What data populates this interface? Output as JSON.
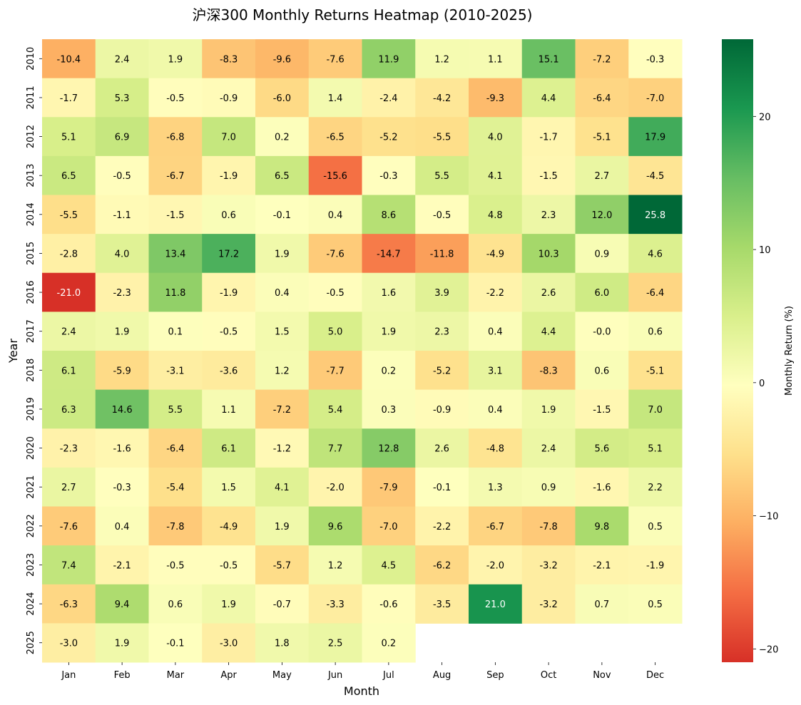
{
  "chart_data": {
    "type": "heatmap",
    "title": "沪深300 Monthly Returns Heatmap (2010-2025)",
    "xlabel": "Month",
    "ylabel": "Year",
    "colorbar_label": "Monthly Return (%)",
    "colormap": [
      "#d73027",
      "#f46d43",
      "#fdae61",
      "#fee08b",
      "#ffffbf",
      "#d9ef8b",
      "#a6d96a",
      "#66bd63",
      "#1a9850",
      "#006837"
    ],
    "vmin": -21.0,
    "vmax": 25.8,
    "colorbar_ticks": [
      20,
      10,
      0,
      -10,
      -20
    ],
    "colorbar_tick_labels": [
      "20",
      "10",
      "0",
      "−10",
      "−20"
    ],
    "months": [
      "Jan",
      "Feb",
      "Mar",
      "Apr",
      "May",
      "Jun",
      "Jul",
      "Aug",
      "Sep",
      "Oct",
      "Nov",
      "Dec"
    ],
    "years": [
      "2010",
      "2011",
      "2012",
      "2013",
      "2014",
      "2015",
      "2016",
      "2017",
      "2018",
      "2019",
      "2020",
      "2021",
      "2022",
      "2023",
      "2024",
      "2025"
    ],
    "values": [
      [
        -10.4,
        2.4,
        1.9,
        -8.3,
        -9.6,
        -7.6,
        11.9,
        1.2,
        1.1,
        15.1,
        -7.2,
        -0.3
      ],
      [
        -1.7,
        5.3,
        -0.5,
        -0.9,
        -6.0,
        1.4,
        -2.4,
        -4.2,
        -9.3,
        4.4,
        -6.4,
        -7.0
      ],
      [
        5.1,
        6.9,
        -6.8,
        7.0,
        0.2,
        -6.5,
        -5.2,
        -5.5,
        4.0,
        -1.7,
        -5.1,
        17.9
      ],
      [
        6.5,
        -0.5,
        -6.7,
        -1.9,
        6.5,
        -15.6,
        -0.3,
        5.5,
        4.1,
        -1.5,
        2.7,
        -4.5
      ],
      [
        -5.5,
        -1.1,
        -1.5,
        0.6,
        -0.1,
        0.4,
        8.6,
        -0.5,
        4.8,
        2.3,
        12.0,
        25.8
      ],
      [
        -2.8,
        4.0,
        13.4,
        17.2,
        1.9,
        -7.6,
        -14.7,
        -11.8,
        -4.9,
        10.3,
        0.9,
        4.6
      ],
      [
        -21.0,
        -2.3,
        11.8,
        -1.9,
        0.4,
        -0.5,
        1.6,
        3.9,
        -2.2,
        2.6,
        6.0,
        -6.4
      ],
      [
        2.4,
        1.9,
        0.1,
        -0.5,
        1.5,
        5.0,
        1.9,
        2.3,
        0.4,
        4.4,
        -0.0,
        0.6
      ],
      [
        6.1,
        -5.9,
        -3.1,
        -3.6,
        1.2,
        -7.7,
        0.2,
        -5.2,
        3.1,
        -8.3,
        0.6,
        -5.1
      ],
      [
        6.3,
        14.6,
        5.5,
        1.1,
        -7.2,
        5.4,
        0.3,
        -0.9,
        0.4,
        1.9,
        -1.5,
        7.0
      ],
      [
        -2.3,
        -1.6,
        -6.4,
        6.1,
        -1.2,
        7.7,
        12.8,
        2.6,
        -4.8,
        2.4,
        5.6,
        5.1
      ],
      [
        2.7,
        -0.3,
        -5.4,
        1.5,
        4.1,
        -2.0,
        -7.9,
        -0.1,
        1.3,
        0.9,
        -1.6,
        2.2
      ],
      [
        -7.6,
        0.4,
        -7.8,
        -4.9,
        1.9,
        9.6,
        -7.0,
        -2.2,
        -6.7,
        -7.8,
        9.8,
        0.5
      ],
      [
        7.4,
        -2.1,
        -0.5,
        -0.5,
        -5.7,
        1.2,
        4.5,
        -6.2,
        -2.0,
        -3.2,
        -2.1,
        -1.9
      ],
      [
        -6.3,
        9.4,
        0.6,
        1.9,
        -0.7,
        -3.3,
        -0.6,
        -3.5,
        21.0,
        -3.2,
        0.7,
        0.5
      ],
      [
        -3.0,
        1.9,
        -0.1,
        -3.0,
        1.8,
        2.5,
        0.2,
        null,
        null,
        null,
        null,
        null
      ]
    ]
  }
}
